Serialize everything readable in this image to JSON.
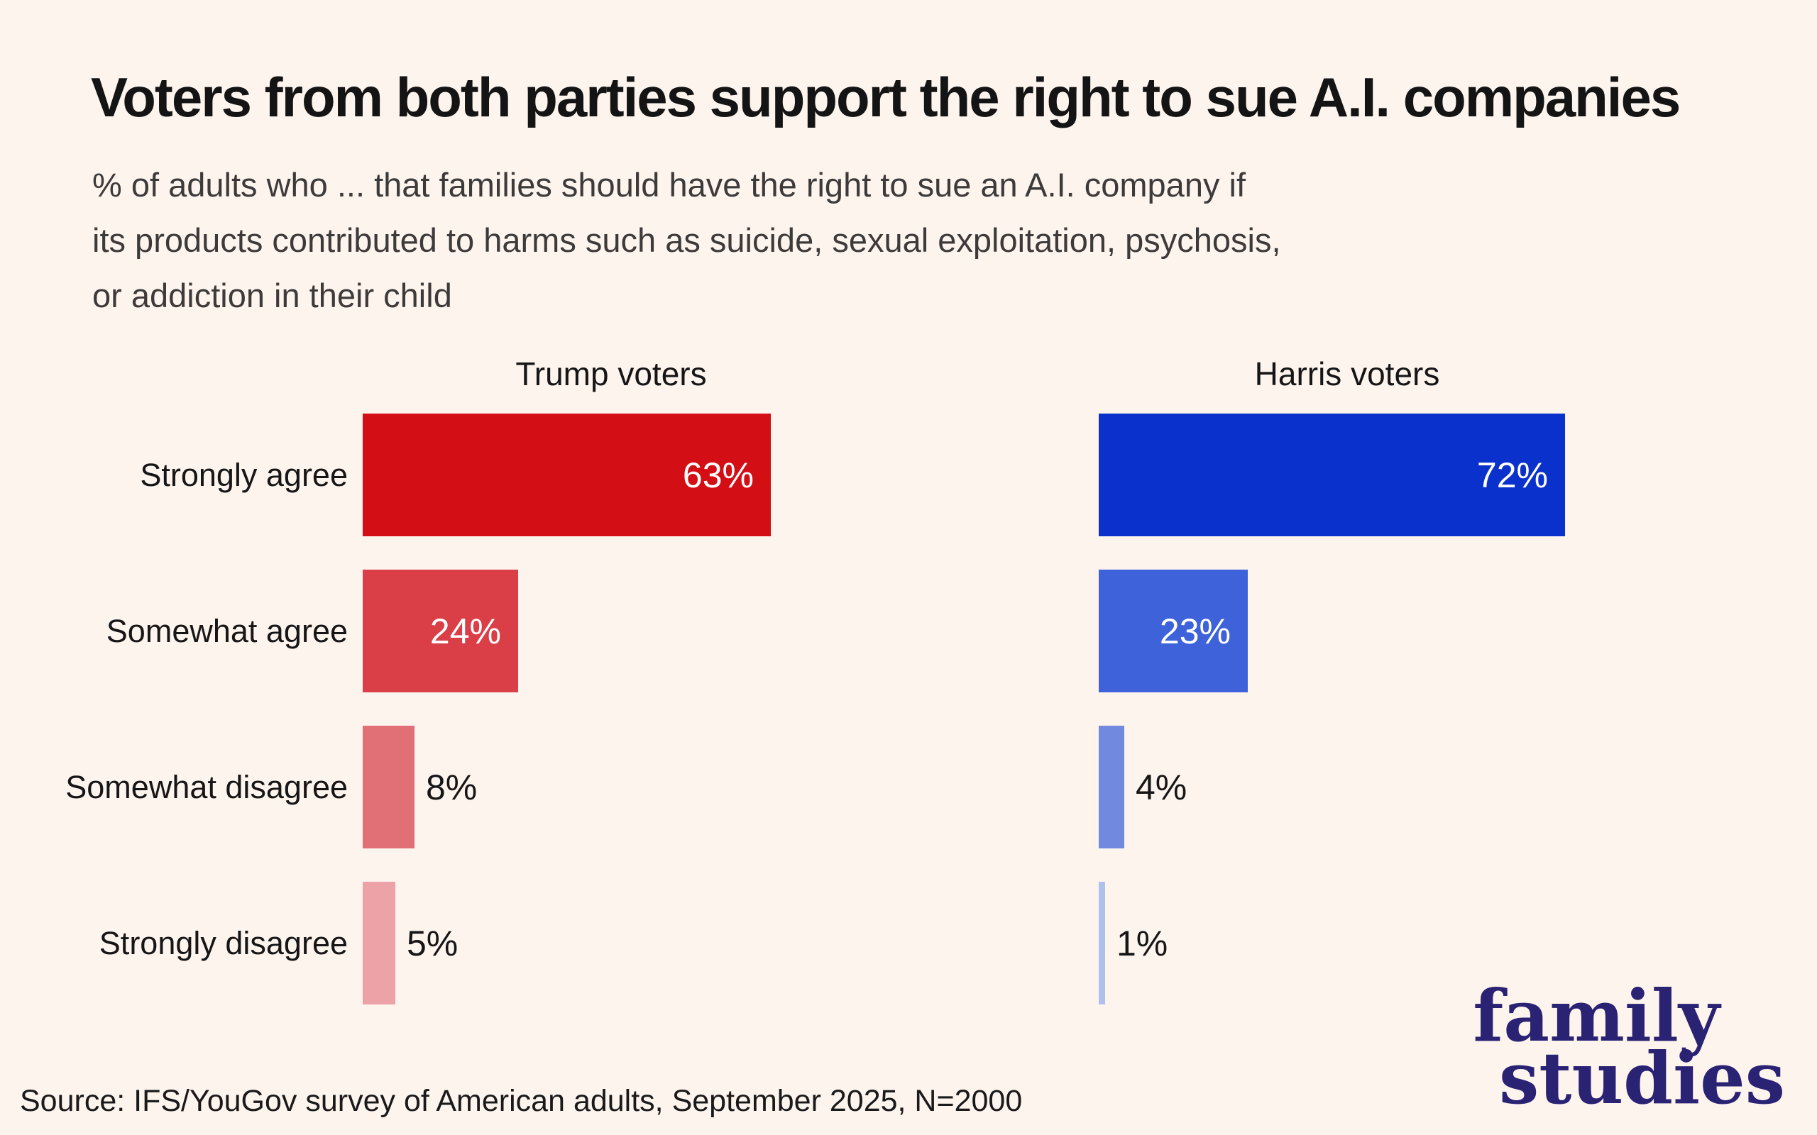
{
  "title": "Voters from both parties support the right to sue A.I. companies",
  "subtitle_lines": [
    "% of adults who ... that families should have the right to sue an A.I. company if",
    "its products contributed to harms such as suicide, sexual exploitation, psychosis,",
    "or addiction in their child"
  ],
  "source": "Source: IFS/YouGov survey of American adults, September 2025, N=2000",
  "logo": {
    "line1": "family",
    "line2": "studies"
  },
  "colors": {
    "background": "#FDF4EE",
    "text_dark": "#161616",
    "subtitle_gray": "#3D3B3A",
    "value_label_inside": "#FFFFFF",
    "logo_navy": "#2A2273"
  },
  "chart_data": {
    "type": "bar",
    "orientation": "horizontal",
    "categories": [
      "Strongly agree",
      "Somewhat agree",
      "Somewhat disagree",
      "Strongly disagree"
    ],
    "series": [
      {
        "name": "Trump voters",
        "values": [
          63,
          24,
          8,
          5
        ],
        "colors": [
          "#D30E14",
          "#DA3E46",
          "#E07076",
          "#ECA2A6"
        ]
      },
      {
        "name": "Harris voters",
        "values": [
          72,
          23,
          4,
          1
        ],
        "colors": [
          "#0A31CB",
          "#3D62D9",
          "#7189DE",
          "#AFC0ED"
        ]
      }
    ],
    "value_suffix": "%",
    "value_labels": [
      "63%",
      "24%",
      "8%",
      "5%",
      "72%",
      "23%",
      "4%",
      "1%"
    ],
    "xlim": [
      0,
      100
    ],
    "grid": false,
    "legend_position": "column-headers"
  }
}
